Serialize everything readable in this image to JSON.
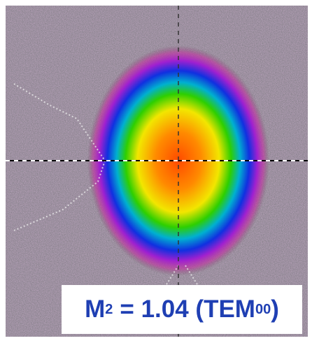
{
  "label": {
    "symbol": "M",
    "superscript": "2",
    "text": "= 1.04 (TEM",
    "subscript": "00",
    "close": ")"
  }
}
